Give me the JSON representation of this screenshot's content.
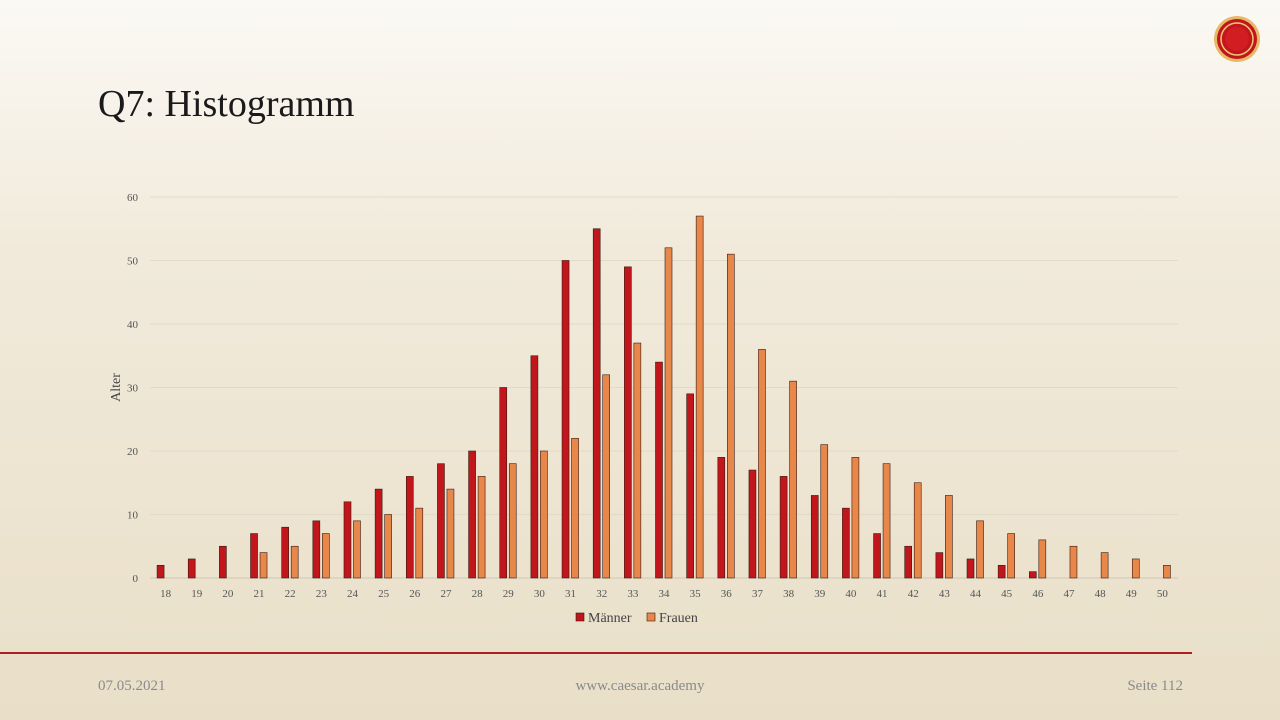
{
  "slide": {
    "title": "Q7: Histogramm",
    "footer_date": "07.05.2021",
    "footer_url": "www.caesar.academy",
    "footer_page": "Seite 112"
  },
  "logo": {
    "icon": "caesar-seal-icon",
    "color": "#c0161c"
  },
  "colors": {
    "maenner": "#c0161c",
    "frauen": "#e8874a",
    "rule": "#b01f1f"
  },
  "chart_data": {
    "type": "bar",
    "title": "",
    "xlabel": "",
    "ylabel": "Alter",
    "ylim": [
      0,
      60
    ],
    "yticks": [
      0,
      10,
      20,
      30,
      40,
      50,
      60
    ],
    "grid": true,
    "legend": "bottom",
    "categories": [
      "18",
      "19",
      "20",
      "21",
      "22",
      "23",
      "24",
      "25",
      "26",
      "27",
      "28",
      "29",
      "30",
      "31",
      "32",
      "33",
      "34",
      "35",
      "36",
      "37",
      "38",
      "39",
      "40",
      "41",
      "42",
      "43",
      "44",
      "45",
      "46",
      "47",
      "48",
      "49",
      "50"
    ],
    "series": [
      {
        "name": "Männer",
        "values": [
          2,
          3,
          5,
          7,
          8,
          9,
          12,
          14,
          16,
          18,
          20,
          30,
          35,
          50,
          55,
          49,
          34,
          29,
          19,
          17,
          16,
          13,
          11,
          7,
          5,
          4,
          3,
          2,
          1,
          0,
          0,
          0,
          0
        ]
      },
      {
        "name": "Frauen",
        "values": [
          0,
          0,
          0,
          4,
          5,
          7,
          9,
          10,
          11,
          14,
          16,
          18,
          20,
          22,
          32,
          37,
          52,
          57,
          51,
          36,
          31,
          21,
          19,
          18,
          15,
          13,
          9,
          7,
          6,
          5,
          4,
          3,
          2
        ]
      }
    ]
  }
}
